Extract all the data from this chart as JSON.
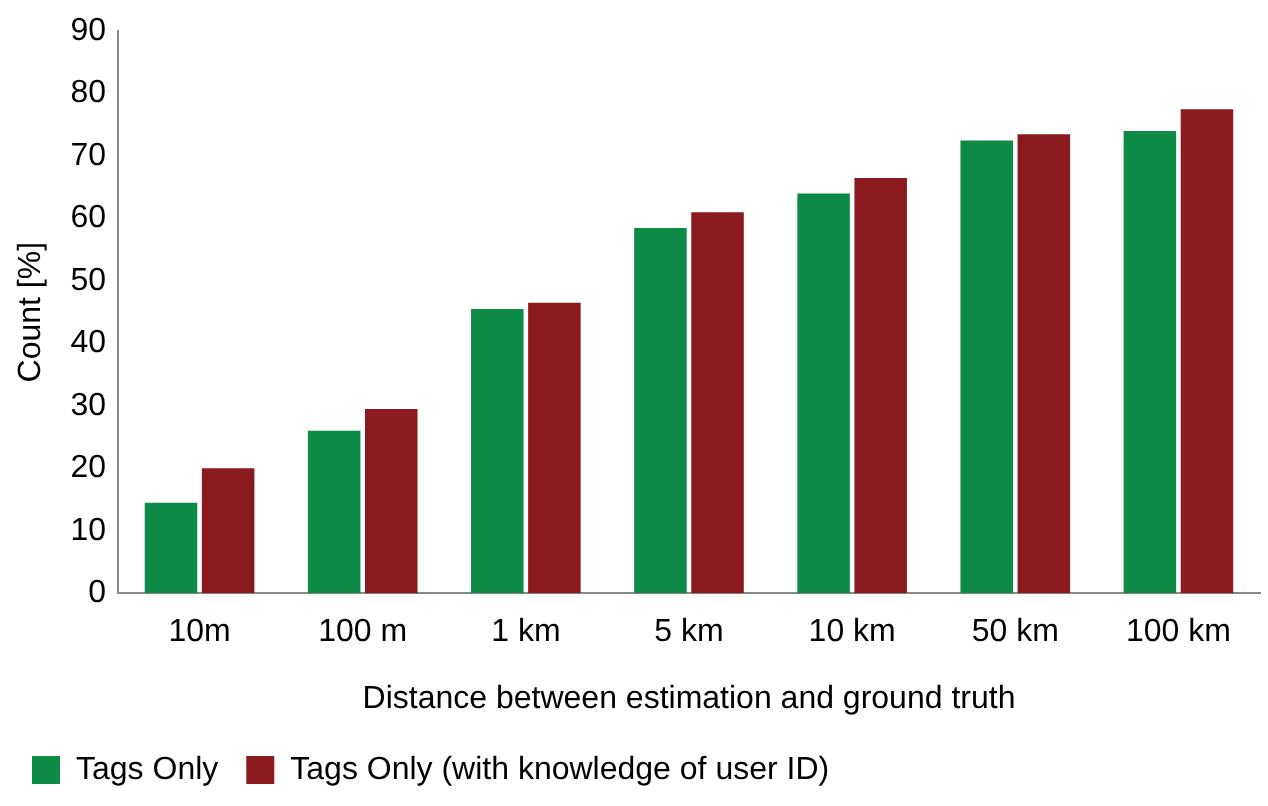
{
  "chart_data": {
    "type": "bar",
    "xlabel": "Distance between estimation and ground truth",
    "ylabel": "Count [%]",
    "categories": [
      "10m",
      "100 m",
      "1 km",
      "5 km",
      "10 km",
      "50 km",
      "100 km"
    ],
    "series": [
      {
        "name": "Tags Only",
        "color": "#0e8a47",
        "values": [
          14.5,
          26,
          45.5,
          58.5,
          64,
          72.5,
          74
        ]
      },
      {
        "name": "Tags Only (with knowledge of user ID)",
        "color": "#8b1a1e",
        "values": [
          20,
          29.5,
          46.5,
          61,
          66.5,
          73.5,
          77.5
        ]
      }
    ],
    "ylim": [
      0,
      90
    ],
    "yticks": [
      0,
      10,
      20,
      30,
      40,
      50,
      60,
      70,
      80,
      90
    ],
    "grid": false,
    "legend": "bottom"
  }
}
